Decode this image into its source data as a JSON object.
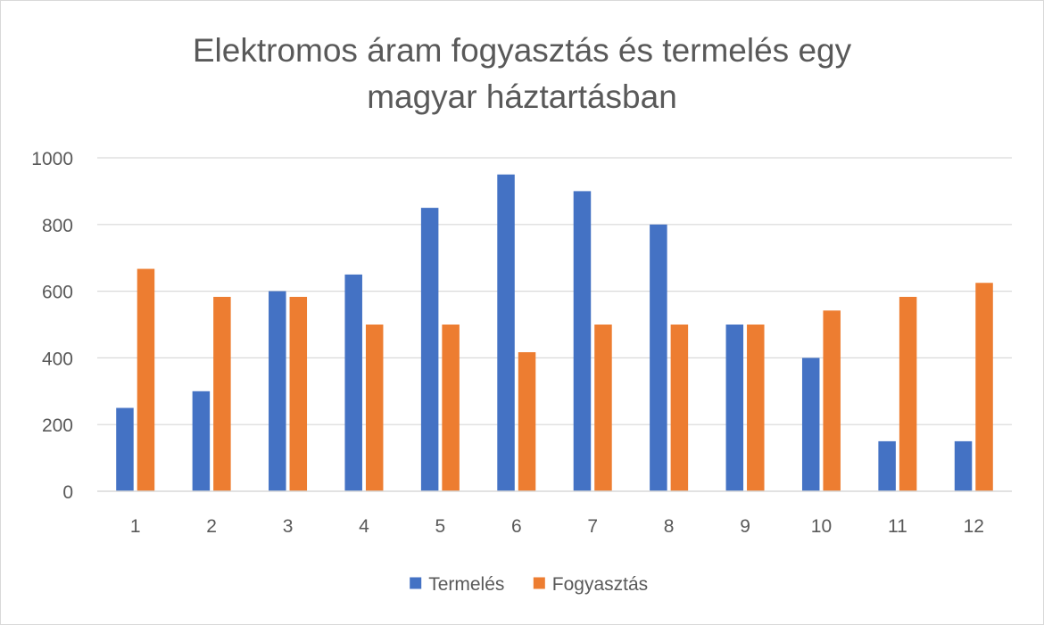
{
  "chart_data": {
    "type": "bar",
    "title_lines": [
      "Elektromos áram fogyasztás és termelés egy",
      "magyar háztartásban"
    ],
    "categories": [
      "1",
      "2",
      "3",
      "4",
      "5",
      "6",
      "7",
      "8",
      "9",
      "10",
      "11",
      "12"
    ],
    "series": [
      {
        "name": "Termelés",
        "color": "#4472c4",
        "values": [
          250,
          300,
          600,
          650,
          850,
          950,
          900,
          800,
          500,
          400,
          150,
          150
        ]
      },
      {
        "name": "Fogyasztás",
        "color": "#ed7d31",
        "values": [
          667,
          583,
          583,
          500,
          500,
          417,
          500,
          500,
          500,
          542,
          583,
          625
        ]
      }
    ],
    "ylim": [
      0,
      1000
    ],
    "yticks": [
      0,
      200,
      400,
      600,
      800,
      1000
    ],
    "xlabel": "",
    "ylabel": "",
    "grid": true,
    "legend_position": "bottom"
  }
}
